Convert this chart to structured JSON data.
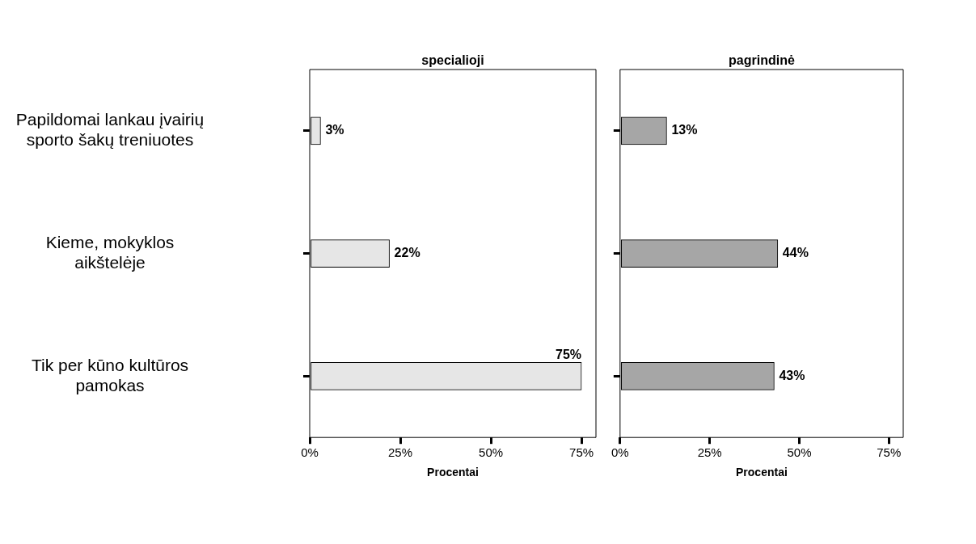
{
  "chart_data": [
    {
      "type": "bar",
      "orientation": "horizontal",
      "title": "specialioji",
      "xlabel": "Procentai",
      "categories": [
        "Papildomai lankau įvairių sporto šakų treniuotes",
        "Kieme, mokyklos aikštelėje",
        "Tik per kūno kultūros pamokas"
      ],
      "values": [
        3,
        22,
        75
      ],
      "value_labels": [
        "3%",
        "22%",
        "75%"
      ],
      "color": "#e6e6e6",
      "xlim": [
        0,
        79
      ],
      "xticks": [
        {
          "value": 0,
          "label": "0%"
        },
        {
          "value": 25,
          "label": "25%"
        },
        {
          "value": 50,
          "label": "50%"
        },
        {
          "value": 75,
          "label": "75%"
        }
      ],
      "grid": false
    },
    {
      "type": "bar",
      "orientation": "horizontal",
      "title": "pagrindinė",
      "xlabel": "Procentai",
      "categories": [
        null,
        null,
        null
      ],
      "values": [
        13,
        44,
        43
      ],
      "value_labels": [
        "13%",
        "44%",
        "43%"
      ],
      "color": "#a6a6a6",
      "xlim": [
        0,
        79
      ],
      "xticks": [
        {
          "value": 0,
          "label": "0%"
        },
        {
          "value": 25,
          "label": "25%"
        },
        {
          "value": 50,
          "label": "50%"
        },
        {
          "value": 75,
          "label": "75%"
        }
      ],
      "grid": false,
      "tick_labels": "x"
    }
  ]
}
